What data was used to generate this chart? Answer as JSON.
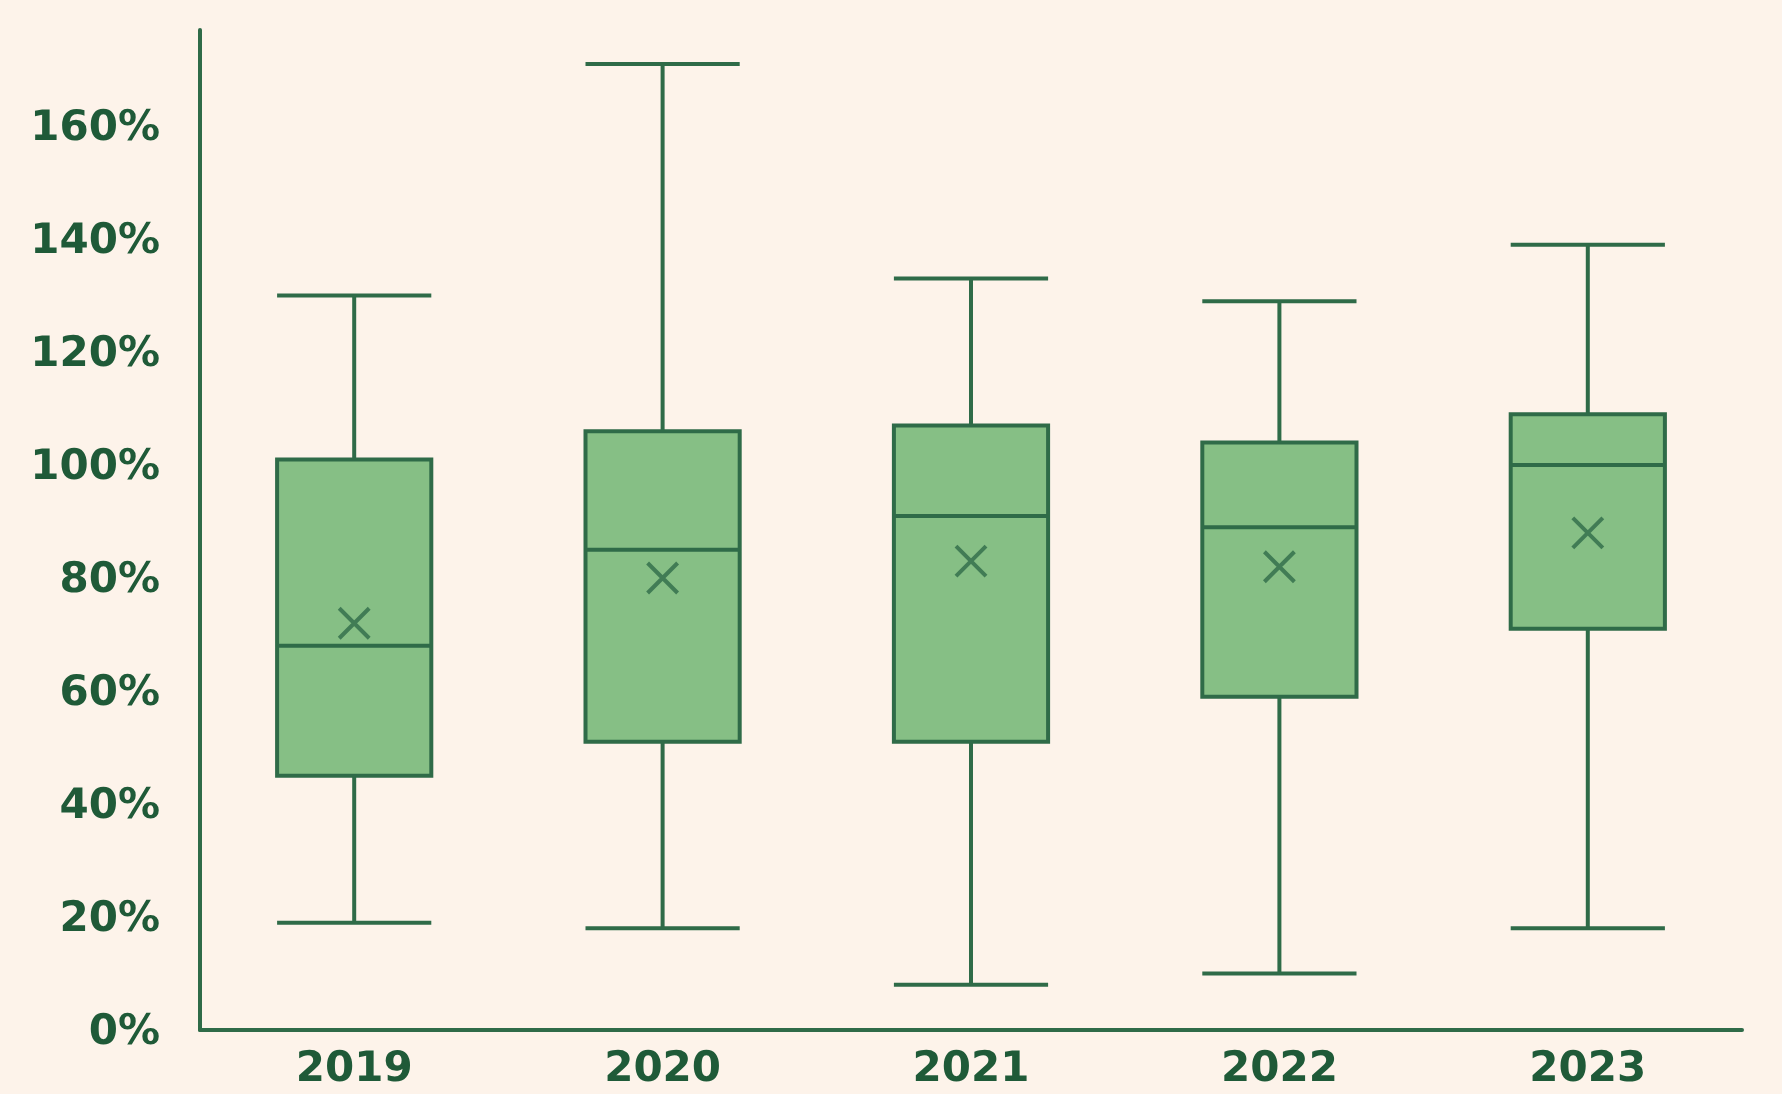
{
  "chart_data": {
    "type": "box",
    "categories": [
      "2019",
      "2020",
      "2021",
      "2022",
      "2023"
    ],
    "series": [
      {
        "color": "#86bf85",
        "boxes": [
          {
            "low": 19,
            "q1": 45,
            "median": 68,
            "q3": 101,
            "high": 130,
            "mean": 72
          },
          {
            "low": 18,
            "q1": 51,
            "median": 85,
            "q3": 106,
            "high": 171,
            "mean": 80
          },
          {
            "low": 8,
            "q1": 51,
            "median": 91,
            "q3": 107,
            "high": 133,
            "mean": 83
          },
          {
            "low": 10,
            "q1": 59,
            "median": 89,
            "q3": 104,
            "high": 129,
            "mean": 82
          },
          {
            "low": 18,
            "q1": 71,
            "median": 100,
            "q3": 109,
            "high": 139,
            "mean": 88
          }
        ]
      }
    ],
    "ylim": [
      0,
      177
    ],
    "yticks": [
      {
        "value": 0,
        "label": "0%"
      },
      {
        "value": 20,
        "label": "20%"
      },
      {
        "value": 40,
        "label": "40%"
      },
      {
        "value": 60,
        "label": "60%"
      },
      {
        "value": 80,
        "label": "80%"
      },
      {
        "value": 100,
        "label": "100%"
      },
      {
        "value": 120,
        "label": "120%"
      },
      {
        "value": 140,
        "label": "140%"
      },
      {
        "value": 160,
        "label": "160%"
      }
    ],
    "grid": false
  }
}
